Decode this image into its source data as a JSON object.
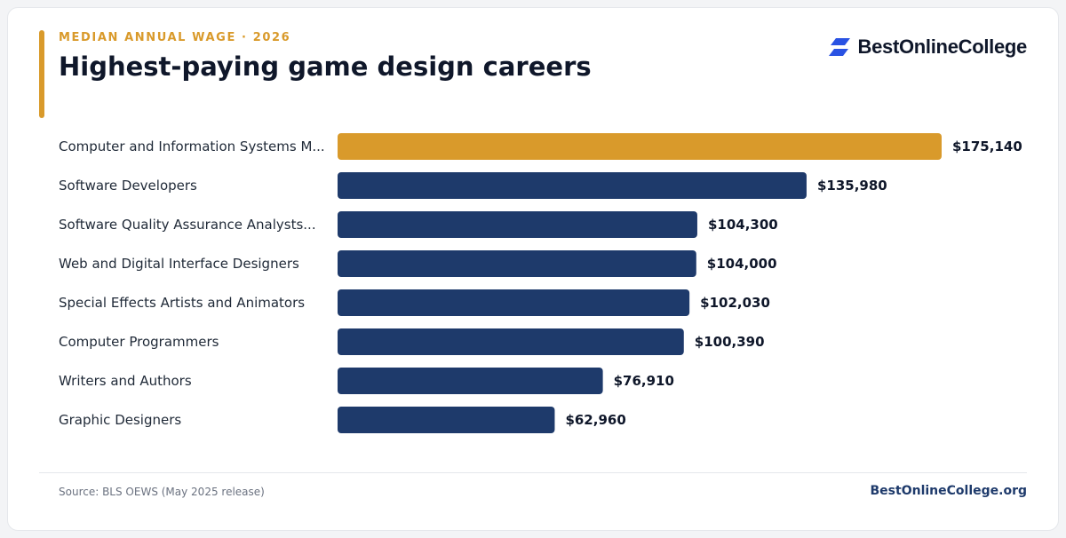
{
  "header": {
    "eyebrow": "MEDIAN ANNUAL WAGE · 2026",
    "title": "Highest-paying game design careers"
  },
  "brand": {
    "name": "BestOnlineCollege",
    "icon": "brand-logo-icon"
  },
  "footer": {
    "source": "Source: BLS OEWS (May 2025 release)",
    "site": "BestOnlineCollege.org"
  },
  "colors": {
    "accent": "#d99a2b",
    "primary_bar": "#1e3a6b",
    "highlight_bar": "#d99a2b",
    "brand_blue": "#2952e3"
  },
  "chart_data": {
    "type": "bar",
    "orientation": "horizontal",
    "title": "Highest-paying game design careers",
    "subtitle": "MEDIAN ANNUAL WAGE · 2026",
    "xlabel": "",
    "ylabel": "",
    "grid": false,
    "legend": "none",
    "xlim": [
      0,
      175140
    ],
    "categories": [
      "Computer and Information Systems M...",
      "Software Developers",
      "Software Quality Assurance Analysts...",
      "Web and Digital Interface Designers",
      "Special Effects Artists and Animators",
      "Computer Programmers",
      "Writers and Authors",
      "Graphic Designers"
    ],
    "values": [
      175140,
      135980,
      104300,
      104000,
      102030,
      100390,
      76910,
      62960
    ],
    "value_labels": [
      "$175,140",
      "$135,980",
      "$104,300",
      "$104,000",
      "$102,030",
      "$100,390",
      "$76,910",
      "$62,960"
    ],
    "highlight_index": 0
  }
}
